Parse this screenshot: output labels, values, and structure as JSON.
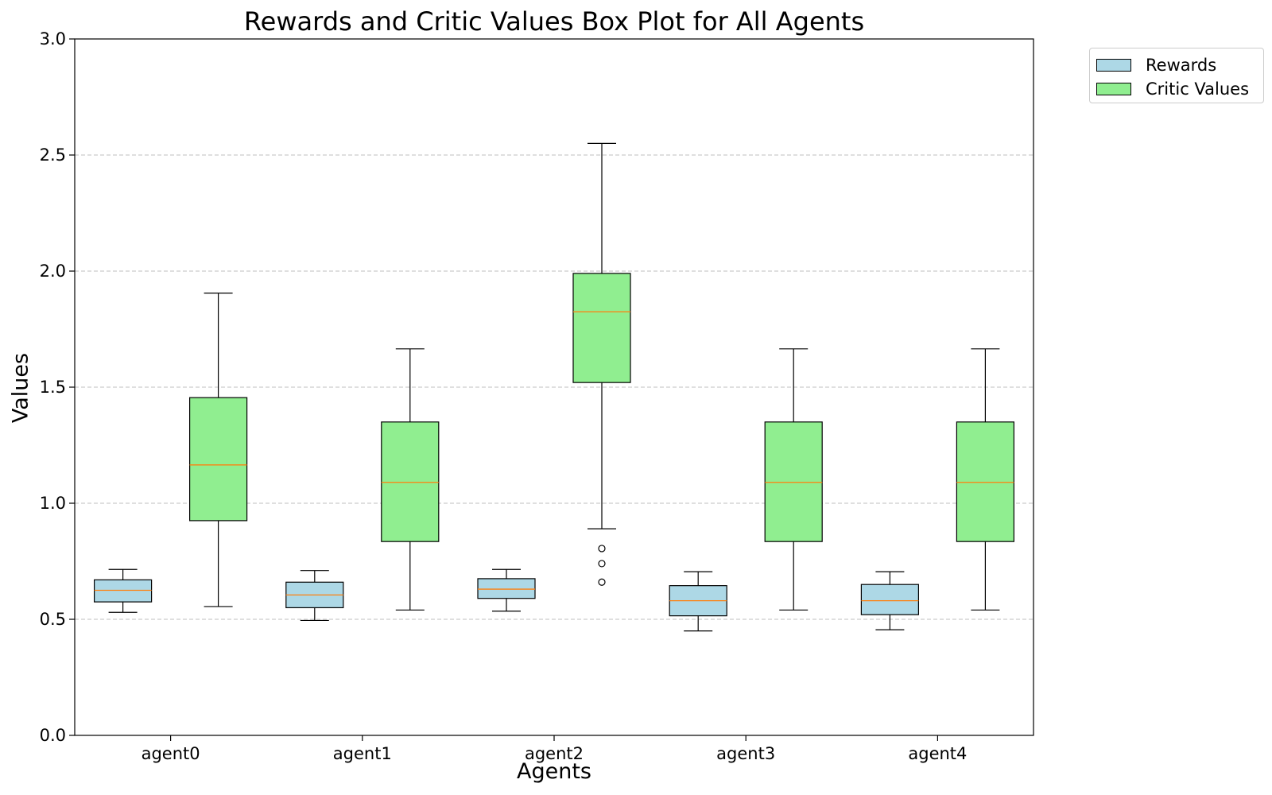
{
  "chart_data": {
    "type": "box",
    "title": "Rewards and Critic Values Box Plot for All Agents",
    "xlabel": "Agents",
    "ylabel": "Values",
    "categories": [
      "agent0",
      "agent1",
      "agent2",
      "agent3",
      "agent4"
    ],
    "ylim": [
      0.0,
      3.0
    ],
    "yticks": [
      "0.0",
      "0.5",
      "1.0",
      "1.5",
      "2.0",
      "2.5",
      "3.0"
    ],
    "ytick_values": [
      0.0,
      0.5,
      1.0,
      1.5,
      2.0,
      2.5,
      3.0
    ],
    "grid": "y-dashed",
    "legend_position": "outside-top-right",
    "colors": {
      "rewards": "#add8e6",
      "critic_values": "#90ee90",
      "median": "#ff7f0e",
      "grid": "#bfbfbf"
    },
    "series": [
      {
        "name": "Rewards",
        "boxes": [
          {
            "whisker_low": 0.53,
            "q1": 0.575,
            "median": 0.625,
            "q3": 0.67,
            "whisker_high": 0.715,
            "outliers": []
          },
          {
            "whisker_low": 0.495,
            "q1": 0.55,
            "median": 0.605,
            "q3": 0.66,
            "whisker_high": 0.71,
            "outliers": []
          },
          {
            "whisker_low": 0.535,
            "q1": 0.59,
            "median": 0.63,
            "q3": 0.675,
            "whisker_high": 0.715,
            "outliers": []
          },
          {
            "whisker_low": 0.45,
            "q1": 0.515,
            "median": 0.58,
            "q3": 0.645,
            "whisker_high": 0.705,
            "outliers": []
          },
          {
            "whisker_low": 0.455,
            "q1": 0.52,
            "median": 0.58,
            "q3": 0.65,
            "whisker_high": 0.705,
            "outliers": []
          }
        ]
      },
      {
        "name": "Critic Values",
        "boxes": [
          {
            "whisker_low": 0.555,
            "q1": 0.925,
            "median": 1.165,
            "q3": 1.455,
            "whisker_high": 1.905,
            "outliers": []
          },
          {
            "whisker_low": 0.54,
            "q1": 0.835,
            "median": 1.09,
            "q3": 1.35,
            "whisker_high": 1.665,
            "outliers": []
          },
          {
            "whisker_low": 0.89,
            "q1": 1.52,
            "median": 1.825,
            "q3": 1.99,
            "whisker_high": 2.55,
            "outliers": [
              0.805,
              0.74,
              0.66
            ]
          },
          {
            "whisker_low": 0.54,
            "q1": 0.835,
            "median": 1.09,
            "q3": 1.35,
            "whisker_high": 1.665,
            "outliers": []
          },
          {
            "whisker_low": 0.54,
            "q1": 0.835,
            "median": 1.09,
            "q3": 1.35,
            "whisker_high": 1.665,
            "outliers": []
          }
        ]
      }
    ]
  }
}
